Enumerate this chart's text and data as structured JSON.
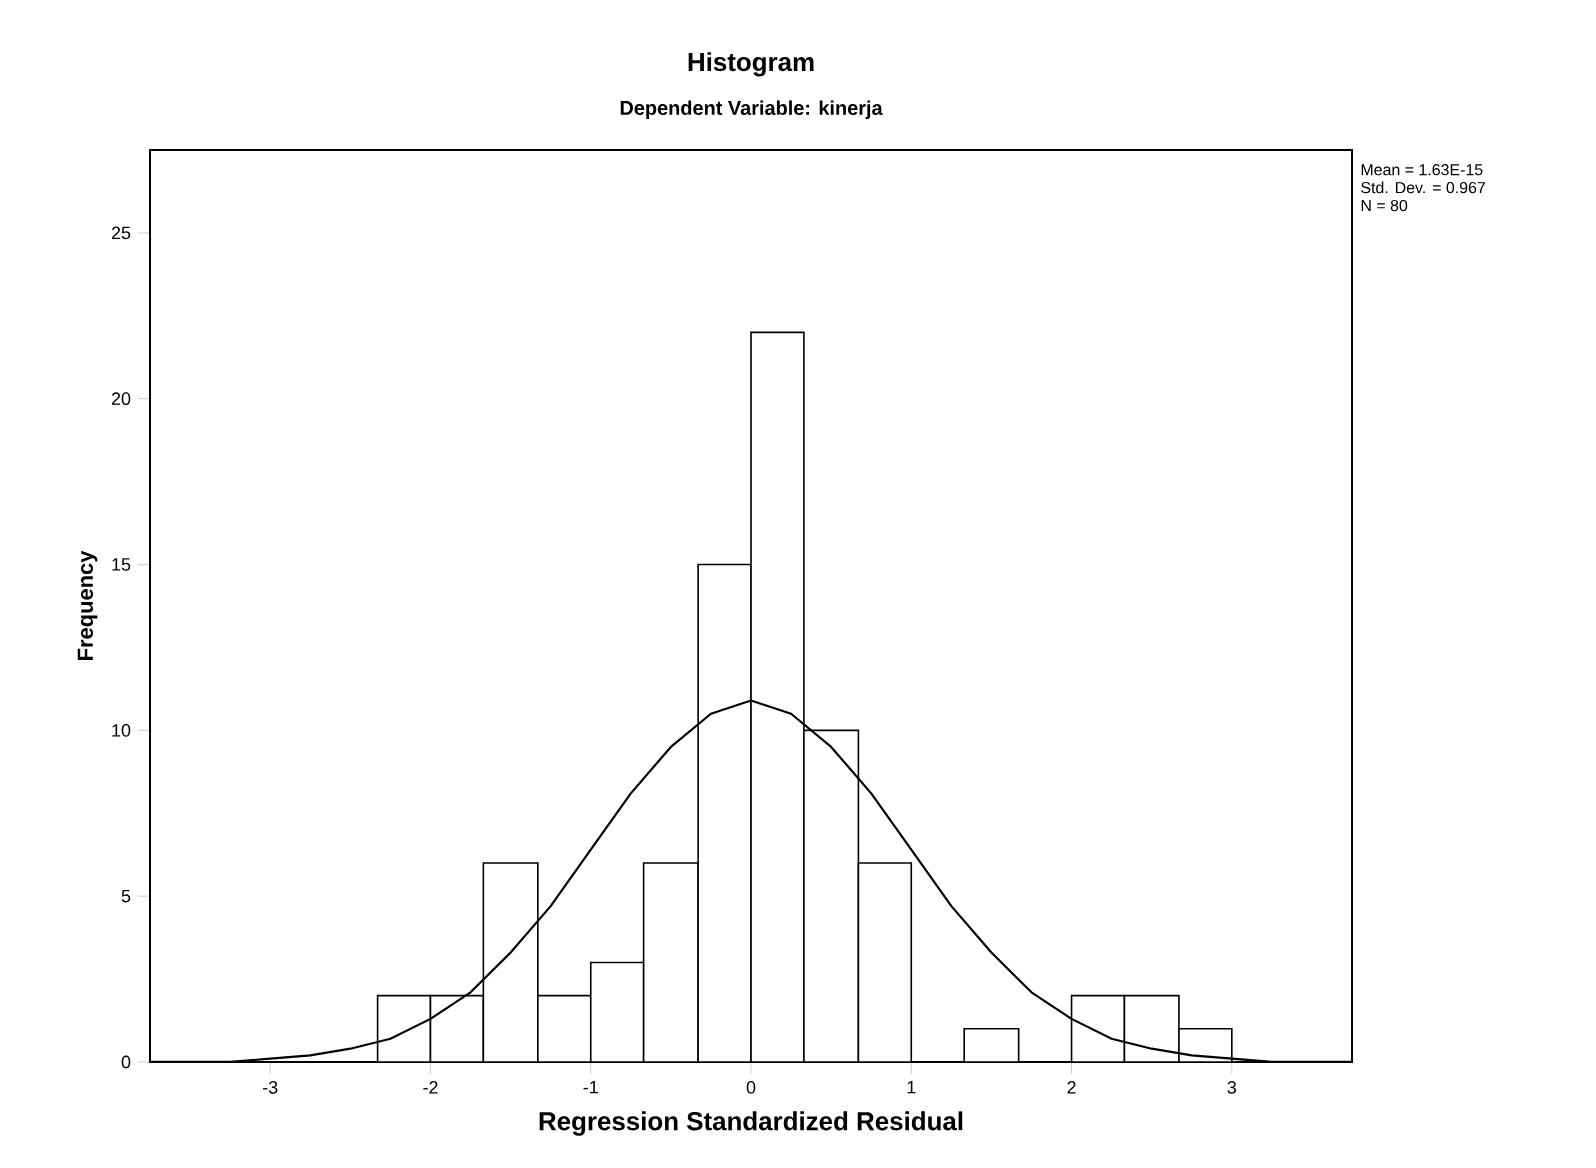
{
  "chart_data": {
    "type": "histogram",
    "title": "Histogram",
    "subtitle": "Dependent Variable: kinerja",
    "xlabel": "Regression Standardized Residual",
    "ylabel": "Frequency",
    "bins": [
      -2.33,
      -2.0,
      -1.67,
      -1.33,
      -1.0,
      -0.67,
      -0.33,
      0.0,
      0.33,
      0.67,
      1.0,
      1.33,
      1.67,
      2.0,
      2.33,
      2.67,
      3.0
    ],
    "values": [
      2,
      2,
      6,
      2,
      3,
      6,
      15,
      22,
      10,
      6,
      0,
      1,
      0,
      2,
      2,
      1
    ],
    "color": "#ffffff",
    "series": [
      {
        "type": "line",
        "color": "#000000",
        "x": [
          -3.75,
          -3.5,
          -3.25,
          -3.0,
          -2.75,
          -2.5,
          -2.25,
          -2.0,
          -1.75,
          -1.5,
          -1.25,
          -1.0,
          -0.75,
          -0.5,
          -0.25,
          0.0,
          0.25,
          0.5,
          0.75,
          1.0,
          1.25,
          1.5,
          1.75,
          2.0,
          2.25,
          2.5,
          2.75,
          3.0,
          3.25,
          3.5,
          3.75
        ],
        "values": [
          0.0,
          0.0,
          0.0,
          0.1,
          0.2,
          0.4,
          0.7,
          1.3,
          2.1,
          3.3,
          4.7,
          6.4,
          8.1,
          9.5,
          10.5,
          10.9,
          10.5,
          9.5,
          8.1,
          6.4,
          4.7,
          3.3,
          2.1,
          1.3,
          0.7,
          0.4,
          0.2,
          0.1,
          0.0,
          0.0,
          0.0
        ]
      }
    ],
    "xlim": [
      -3.75,
      3.75
    ],
    "ylim": [
      0,
      27.5
    ],
    "xticks": [
      -3,
      -2,
      -1,
      0,
      1,
      2,
      3
    ],
    "yticks": [
      0,
      5,
      10,
      15,
      20,
      25
    ],
    "grid": false,
    "annotations": [
      "Mean = 1.63E-15",
      "Std. Dev. = 0.967",
      "N = 80"
    ]
  }
}
